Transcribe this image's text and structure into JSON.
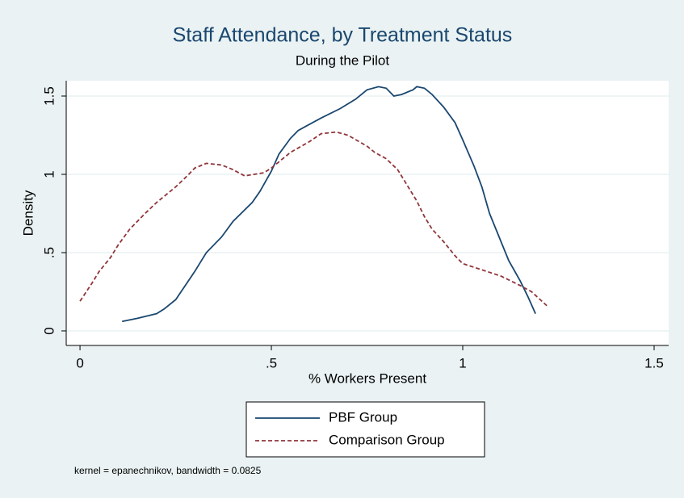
{
  "chart_data": {
    "type": "line",
    "title": "Staff Attendance, by Treatment Status",
    "subtitle": "During the Pilot",
    "x_label": "% Workers Present",
    "y_label": "Density",
    "note": "kernel = epanechnikov, bandwidth = 0.0825",
    "xlim": [
      -0.036,
      1.538
    ],
    "ylim": [
      -0.093,
      1.598
    ],
    "xticks": [
      0,
      {
        "value": 0.5,
        "label": ".5"
      },
      1,
      1.5
    ],
    "yticks": [
      0,
      {
        "value": 0.5,
        "label": ".5"
      },
      1,
      1.5
    ],
    "grid": true,
    "legend": "bottom",
    "series": [
      {
        "name": "PBF Group",
        "color": "#1a476f",
        "dash": "solid",
        "x": [
          0.11,
          0.15,
          0.2,
          0.22,
          0.25,
          0.3,
          0.33,
          0.37,
          0.4,
          0.45,
          0.47,
          0.5,
          0.52,
          0.55,
          0.57,
          0.6,
          0.63,
          0.68,
          0.72,
          0.75,
          0.78,
          0.8,
          0.82,
          0.84,
          0.87,
          0.88,
          0.9,
          0.92,
          0.95,
          0.98,
          1.0,
          1.03,
          1.05,
          1.07,
          1.1,
          1.12,
          1.15,
          1.17,
          1.19
        ],
        "values": [
          0.06,
          0.08,
          0.11,
          0.14,
          0.2,
          0.38,
          0.5,
          0.6,
          0.7,
          0.82,
          0.89,
          1.02,
          1.13,
          1.23,
          1.28,
          1.32,
          1.36,
          1.42,
          1.48,
          1.54,
          1.56,
          1.55,
          1.5,
          1.51,
          1.54,
          1.56,
          1.55,
          1.51,
          1.43,
          1.33,
          1.22,
          1.05,
          0.92,
          0.75,
          0.57,
          0.45,
          0.32,
          0.22,
          0.11
        ]
      },
      {
        "name": "Comparison Group",
        "color": "#90353b",
        "dash": "dashed",
        "x": [
          0,
          0.03,
          0.05,
          0.08,
          0.1,
          0.13,
          0.17,
          0.2,
          0.25,
          0.28,
          0.3,
          0.33,
          0.37,
          0.4,
          0.43,
          0.48,
          0.5,
          0.55,
          0.6,
          0.63,
          0.67,
          0.7,
          0.75,
          0.77,
          0.8,
          0.83,
          0.85,
          0.88,
          0.9,
          0.92,
          0.95,
          0.98,
          1.0,
          1.05,
          1.1,
          1.15,
          1.18,
          1.22
        ],
        "values": [
          0.19,
          0.3,
          0.38,
          0.47,
          0.55,
          0.65,
          0.75,
          0.82,
          0.92,
          0.99,
          1.04,
          1.07,
          1.06,
          1.03,
          0.99,
          1.01,
          1.04,
          1.14,
          1.21,
          1.26,
          1.27,
          1.25,
          1.18,
          1.14,
          1.1,
          1.03,
          0.95,
          0.83,
          0.73,
          0.65,
          0.57,
          0.48,
          0.43,
          0.39,
          0.35,
          0.29,
          0.25,
          0.16
        ]
      }
    ]
  }
}
